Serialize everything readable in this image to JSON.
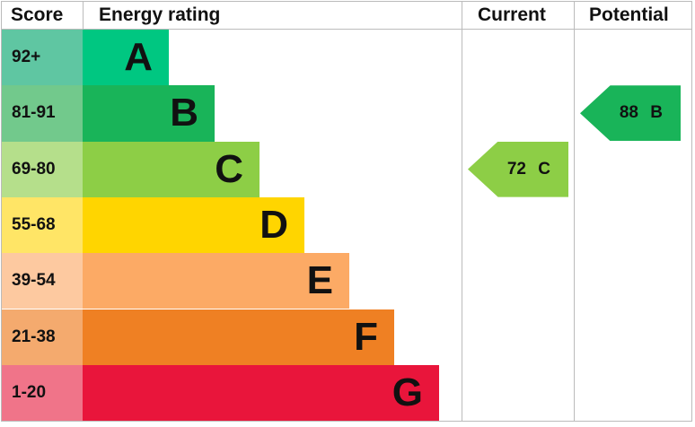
{
  "chart_data": {
    "type": "table",
    "headers": {
      "score": "Score",
      "rating": "Energy rating",
      "current": "Current",
      "potential": "Potential"
    },
    "bands": [
      {
        "score": "92+",
        "letter": "A",
        "color": "#00c781",
        "score_color": "#5fc6a2"
      },
      {
        "score": "81-91",
        "letter": "B",
        "color": "#19b459",
        "score_color": "#72c98c"
      },
      {
        "score": "69-80",
        "letter": "C",
        "color": "#8dce46",
        "score_color": "#b5df8b"
      },
      {
        "score": "55-68",
        "letter": "D",
        "color": "#ffd500",
        "score_color": "#ffe566"
      },
      {
        "score": "39-54",
        "letter": "E",
        "color": "#fcaa65",
        "score_color": "#fdc9a0"
      },
      {
        "score": "21-38",
        "letter": "F",
        "color": "#ef8023",
        "score_color": "#f4aa6e"
      },
      {
        "score": "1-20",
        "letter": "G",
        "color": "#e9153b",
        "score_color": "#f07489"
      }
    ],
    "current": {
      "value": 72,
      "letter": "C",
      "label": "72 C",
      "color": "#8dce46"
    },
    "potential": {
      "value": 88,
      "letter": "B",
      "label": "88 B",
      "color": "#19b459"
    }
  }
}
